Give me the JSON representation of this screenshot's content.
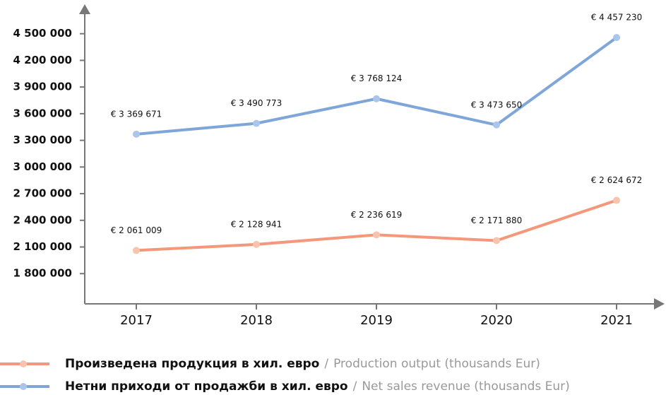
{
  "chart_data": {
    "type": "line",
    "categories": [
      "2017",
      "2018",
      "2019",
      "2020",
      "2021"
    ],
    "series": [
      {
        "name": "Произведена продукция в хил. евро",
        "name_translation": "Production output (thousands Eur)",
        "color": "#f4977a",
        "marker_color": "#f9c4ae",
        "values": [
          2061009,
          2128941,
          2236619,
          2171880,
          2624672
        ],
        "value_labels": [
          "€ 2 061 009",
          "€ 2 128 941",
          "€ 2 236 619",
          "€ 2 171 880",
          "€ 2 624 672"
        ]
      },
      {
        "name": "Нетни приходи от продажби в хил. евро",
        "name_translation": "Net sales revenue (thousands Eur)",
        "color": "#7fa6d8",
        "marker_color": "#abc6ec",
        "values": [
          3369671,
          3490773,
          3768124,
          3473650,
          4457230
        ],
        "value_labels": [
          "€ 3 369 671",
          "€ 3 490 773",
          "€ 3 768 124",
          "€ 3 473 650",
          "€ 4 457 230"
        ]
      }
    ],
    "legend_separator": "/",
    "ylim": [
      1460000,
      4760000
    ],
    "yticks": [
      {
        "value": 1800000,
        "label": "1 800 000"
      },
      {
        "value": 2100000,
        "label": "2 100 000"
      },
      {
        "value": 2400000,
        "label": "2 400 000"
      },
      {
        "value": 2700000,
        "label": "2 700 000"
      },
      {
        "value": 3000000,
        "label": "3 000 000"
      },
      {
        "value": 3300000,
        "label": "3 300 000"
      },
      {
        "value": 3600000,
        "label": "3 600 000"
      },
      {
        "value": 3900000,
        "label": "3 900 000"
      },
      {
        "value": 4200000,
        "label": "4 200 000"
      },
      {
        "value": 4500000,
        "label": "4 500 000"
      }
    ],
    "grid": false
  }
}
